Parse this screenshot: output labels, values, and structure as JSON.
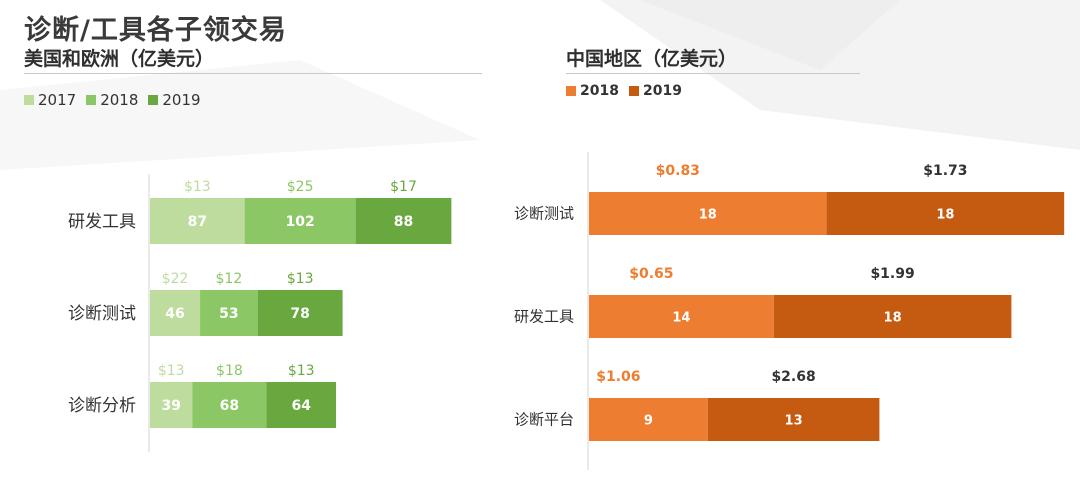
{
  "page_title": "诊断/工具各子领交易",
  "colors": {
    "green_2017": "#bddc9e",
    "green_2018": "#8cc766",
    "green_2019": "#69a83e",
    "orange_2018": "#ed7d31",
    "orange_2019": "#c55a11",
    "top_label_dark": "#333333"
  },
  "chart_data": [
    {
      "type": "bar",
      "orientation": "horizontal",
      "stacked": true,
      "title": "美国和欧洲（亿美元）",
      "categories": [
        "研发工具",
        "诊断测试",
        "诊断分析"
      ],
      "series": [
        {
          "name": "2017",
          "values": [
            87,
            46,
            39
          ],
          "top_labels": [
            "$13",
            "$22",
            "$13"
          ]
        },
        {
          "name": "2018",
          "values": [
            102,
            53,
            68
          ],
          "top_labels": [
            "$25",
            "$12",
            "$18"
          ]
        },
        {
          "name": "2019",
          "values": [
            88,
            78,
            64
          ],
          "top_labels": [
            "$17",
            "$13",
            "$13"
          ]
        }
      ],
      "legend": "top-left",
      "grid": false
    },
    {
      "type": "bar",
      "orientation": "horizontal",
      "stacked": true,
      "title": "中国地区（亿美元）",
      "categories": [
        "诊断测试",
        "研发工具",
        "诊断平台"
      ],
      "series": [
        {
          "name": "2018",
          "values": [
            18,
            14,
            9
          ],
          "top_labels": [
            "$0.83",
            "$0.65",
            "$1.06"
          ]
        },
        {
          "name": "2019",
          "values": [
            18,
            18,
            13
          ],
          "top_labels": [
            "$1.73",
            "$1.99",
            "$2.68"
          ]
        }
      ],
      "legend": "top-left",
      "grid": false
    }
  ]
}
